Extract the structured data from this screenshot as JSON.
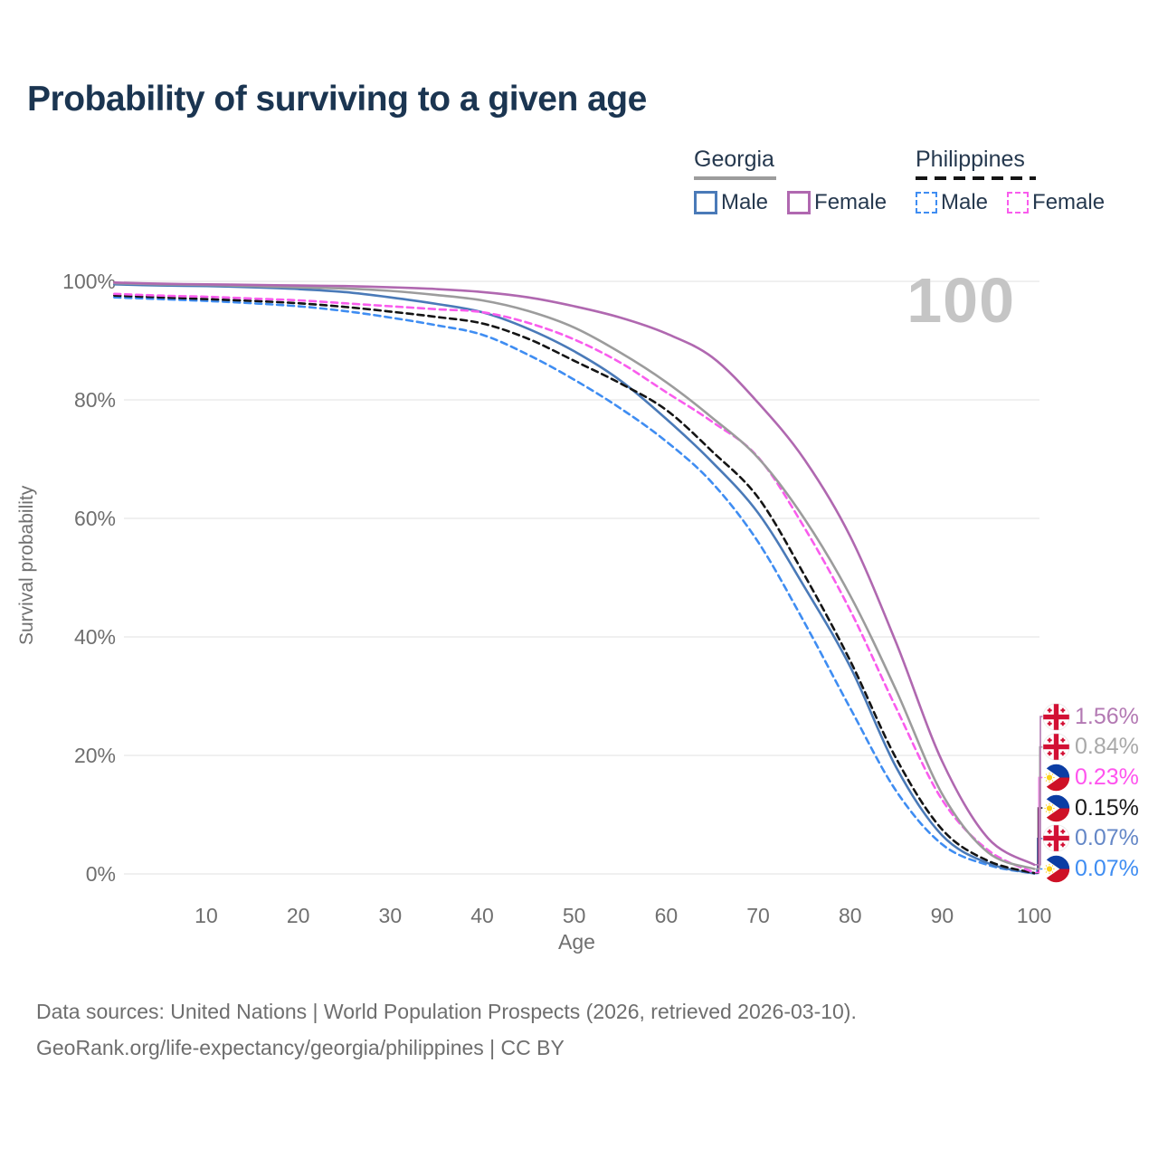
{
  "title": "Probability of surviving to a given age",
  "watermark": "100",
  "legend": {
    "groups": [
      {
        "label": "Georgia",
        "line_style": "solid",
        "rule_color": "#9c9c9c",
        "items": [
          {
            "label": "Male",
            "box_color": "#4a7ab8",
            "dashed": false
          },
          {
            "label": "Female",
            "box_color": "#b068b0",
            "dashed": false
          }
        ]
      },
      {
        "label": "Philippines",
        "line_style": "dashed",
        "rule_color": "#141414",
        "items": [
          {
            "label": "Male",
            "box_color": "#3f8df2",
            "dashed": true
          },
          {
            "label": "Female",
            "box_color": "#f95ced",
            "dashed": true
          }
        ]
      }
    ]
  },
  "chart_data": {
    "type": "line",
    "title": "Probability of surviving to a given age",
    "xlabel": "Age",
    "ylabel": "Survival probability",
    "xlim": [
      0,
      100
    ],
    "ylim": [
      0,
      100
    ],
    "grid": "horizontal-only",
    "x_tick_values": [
      10,
      20,
      30,
      40,
      50,
      60,
      70,
      80,
      90,
      100
    ],
    "y_tick_values": [
      0,
      20,
      40,
      60,
      80,
      100
    ],
    "y_tick_suffix": "%",
    "x": [
      0,
      5,
      10,
      15,
      20,
      25,
      30,
      35,
      40,
      45,
      50,
      55,
      60,
      65,
      70,
      75,
      80,
      85,
      90,
      95,
      100
    ],
    "series": [
      {
        "name": "Philippines Male",
        "country": "philippines",
        "sex": "male",
        "line_color": "#3f8df2",
        "label_color": "#3f8df2",
        "dash": "7 5",
        "end_label": "0.07%",
        "end_slot": 5,
        "values": [
          97.3,
          97.0,
          96.7,
          96.3,
          95.8,
          95.0,
          93.9,
          92.6,
          91.0,
          87.6,
          83.4,
          78.6,
          73.0,
          66.0,
          56.0,
          42.5,
          28.0,
          14.0,
          5.0,
          1.5,
          0.07
        ]
      },
      {
        "name": "Georgia Male",
        "country": "georgia",
        "sex": "male",
        "line_color": "#4a7ab8",
        "label_color": "#6487c7",
        "dash": null,
        "end_label": "0.07%",
        "end_slot": 4,
        "values": [
          99.5,
          99.3,
          99.2,
          99.0,
          98.7,
          98.2,
          97.3,
          96.2,
          94.8,
          92.0,
          88.2,
          83.3,
          76.8,
          69.5,
          60.9,
          48.5,
          35.0,
          18.0,
          6.5,
          1.8,
          0.07
        ]
      },
      {
        "name": "Philippines Total",
        "country": "philippines",
        "sex": "both",
        "line_color": "#141414",
        "label_color": "#1a1a1a",
        "dash": "7 5",
        "end_label": "0.15%",
        "end_slot": 3,
        "values": [
          97.6,
          97.3,
          97.0,
          96.7,
          96.3,
          95.7,
          94.9,
          94.0,
          92.9,
          90.3,
          86.6,
          82.8,
          78.3,
          71.3,
          63.5,
          50.5,
          36.0,
          19.5,
          7.5,
          2.2,
          0.15
        ]
      },
      {
        "name": "Philippines Female",
        "country": "philippines",
        "sex": "female",
        "line_color": "#f95ced",
        "label_color": "#ff54ee",
        "dash": "7 5",
        "end_label": "0.23%",
        "end_slot": 2,
        "values": [
          97.9,
          97.6,
          97.4,
          97.1,
          96.8,
          96.3,
          95.8,
          95.3,
          94.8,
          93.0,
          90.2,
          86.3,
          81.3,
          76.3,
          70.3,
          58.5,
          44.5,
          28.0,
          12.5,
          4.0,
          0.23
        ]
      },
      {
        "name": "Georgia Total",
        "country": "georgia",
        "sex": "both",
        "line_color": "#9c9c9c",
        "label_color": "#a9a9a9",
        "dash": null,
        "end_label": "0.84%",
        "end_slot": 1,
        "values": [
          99.7,
          99.5,
          99.4,
          99.2,
          99.0,
          98.8,
          98.4,
          97.7,
          96.8,
          95.0,
          92.2,
          88.0,
          83.0,
          77.0,
          70.2,
          60.0,
          47.0,
          31.0,
          13.5,
          3.6,
          0.84
        ]
      },
      {
        "name": "Georgia Female",
        "country": "georgia",
        "sex": "female",
        "line_color": "#b068b0",
        "label_color": "#b379b3",
        "dash": null,
        "end_label": "1.56%",
        "end_slot": 0,
        "values": [
          99.8,
          99.6,
          99.5,
          99.4,
          99.3,
          99.2,
          99.0,
          98.7,
          98.2,
          97.3,
          95.8,
          93.9,
          91.2,
          87.2,
          79.5,
          70.0,
          57.0,
          39.0,
          19.0,
          6.0,
          1.56
        ]
      }
    ]
  },
  "footer": {
    "line1": "Data sources: United Nations | World Population Prospects (2026, retrieved 2026-03-10).",
    "line2": "GeoRank.org/life-expectancy/georgia/philippines | CC BY"
  }
}
